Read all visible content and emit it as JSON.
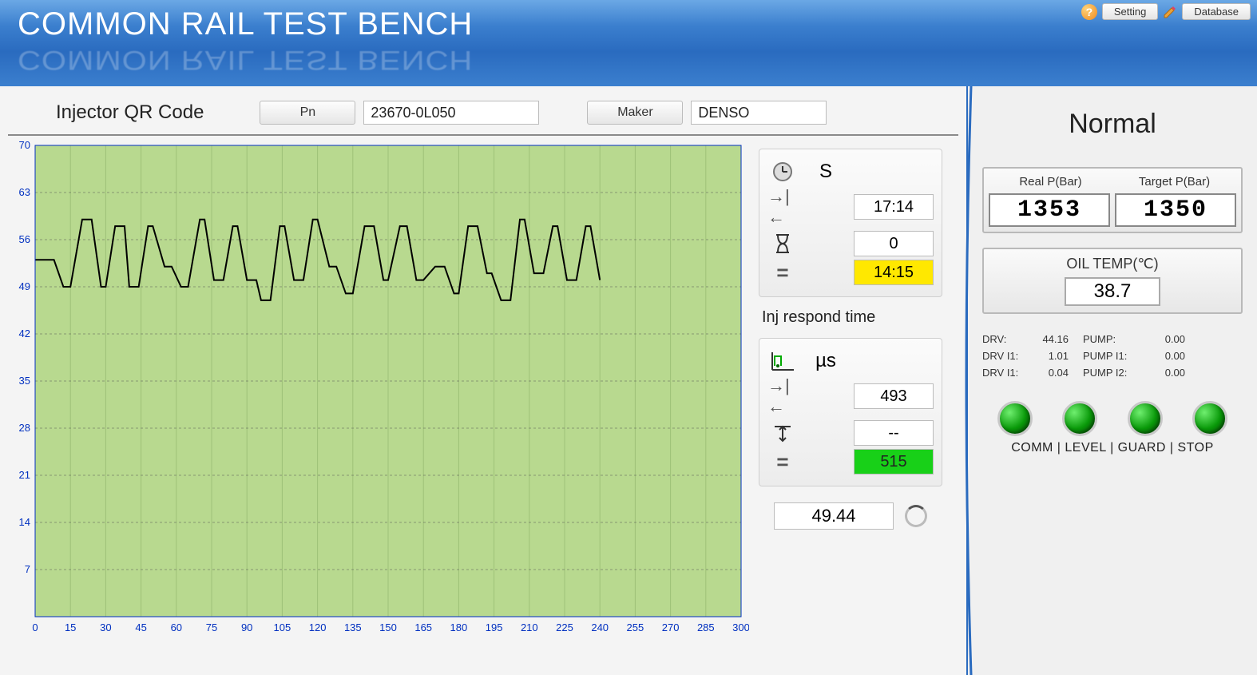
{
  "header": {
    "title": "COMMON RAIL TEST BENCH",
    "setting_btn": "Setting",
    "database_btn": "Database"
  },
  "qr": {
    "label": "Injector QR Code",
    "pn_btn": "Pn",
    "pn_value": "23670-0L050",
    "maker_btn": "Maker",
    "maker_value": "DENSO"
  },
  "chart": {
    "type": "line",
    "background_color": "#b8d98f",
    "grid_color": "#9ec178",
    "border_color": "#0030c0",
    "line_color": "#000000",
    "line_width": 2,
    "xlim": [
      0,
      300
    ],
    "ylim": [
      0,
      70
    ],
    "xtick_step": 15,
    "ytick_step": 7,
    "xticks": [
      0,
      15,
      30,
      45,
      60,
      75,
      90,
      105,
      120,
      135,
      150,
      165,
      180,
      195,
      210,
      225,
      240,
      255,
      270,
      285,
      300
    ],
    "yticks": [
      7,
      14,
      21,
      28,
      35,
      42,
      49,
      56,
      63,
      70
    ],
    "series_x": [
      0,
      8,
      12,
      15,
      20,
      24,
      28,
      30,
      34,
      38,
      40,
      44,
      48,
      50,
      55,
      58,
      62,
      65,
      70,
      72,
      76,
      80,
      84,
      86,
      90,
      94,
      96,
      100,
      104,
      106,
      110,
      114,
      118,
      120,
      125,
      128,
      132,
      135,
      140,
      144,
      148,
      150,
      155,
      158,
      162,
      165,
      170,
      174,
      178,
      180,
      184,
      188,
      192,
      194,
      198,
      202,
      206,
      208,
      212,
      216,
      220,
      222,
      226,
      230,
      234,
      236,
      240
    ],
    "series_y": [
      53,
      53,
      49,
      49,
      59,
      59,
      49,
      49,
      58,
      58,
      49,
      49,
      58,
      58,
      52,
      52,
      49,
      49,
      59,
      59,
      50,
      50,
      58,
      58,
      50,
      50,
      47,
      47,
      58,
      58,
      50,
      50,
      59,
      59,
      52,
      52,
      48,
      48,
      58,
      58,
      50,
      50,
      58,
      58,
      50,
      50,
      52,
      52,
      48,
      48,
      58,
      58,
      51,
      51,
      47,
      47,
      59,
      59,
      51,
      51,
      58,
      58,
      50,
      50,
      58,
      58,
      50
    ]
  },
  "s_panel": {
    "unit": "S",
    "timer": "17:14",
    "hourglass": "0",
    "result": "14:15"
  },
  "inj_panel": {
    "title": "Inj respond time",
    "unit": "µs",
    "timer": "493",
    "range": "--",
    "result": "515"
  },
  "bottom_value": "49.44",
  "status": {
    "title": "Normal",
    "real_p_label": "Real P(Bar)",
    "target_p_label": "Target P(Bar)",
    "real_p": "1353",
    "target_p": "1350",
    "oil_label": "OIL TEMP(℃)",
    "oil_value": "38.7",
    "drv_rows": [
      {
        "a": "DRV:",
        "av": "44.16",
        "b": "PUMP:",
        "bv": "0.00"
      },
      {
        "a": "DRV I1:",
        "av": "1.01",
        "b": "PUMP I1:",
        "bv": "0.00"
      },
      {
        "a": "DRV I1:",
        "av": "0.04",
        "b": "PUMP I2:",
        "bv": "0.00"
      }
    ],
    "led_labels": "COMM | LEVEL | GUARD | STOP"
  }
}
